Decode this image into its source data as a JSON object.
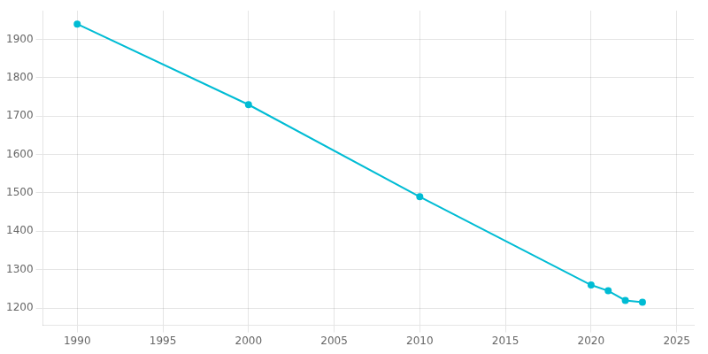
{
  "chart_data": {
    "type": "line",
    "x": [
      1990,
      2000,
      2010,
      2020,
      2021,
      2022,
      2023
    ],
    "values": [
      1940,
      1730,
      1490,
      1260,
      1245,
      1220,
      1215
    ],
    "color": "#00bcd4",
    "marker": "circle",
    "xlim": [
      1988,
      2026
    ],
    "ylim": [
      1155,
      1975
    ],
    "xticks": [
      1990,
      1995,
      2000,
      2005,
      2010,
      2015,
      2020,
      2025
    ],
    "yticks": [
      1200,
      1300,
      1400,
      1500,
      1600,
      1700,
      1800,
      1900
    ],
    "grid": true
  }
}
